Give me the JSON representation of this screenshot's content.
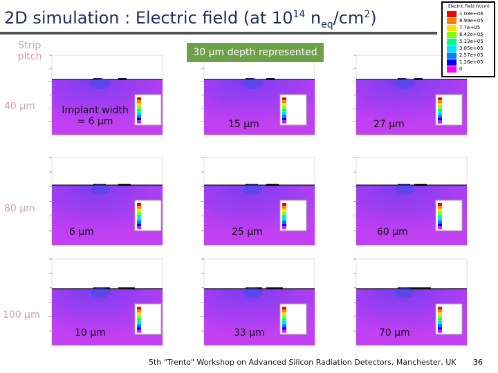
{
  "title": {
    "text": "2D simulation : Electric field (at 10",
    "sup1": "14",
    "mid": " n",
    "sub": "eq",
    "after": "/cm",
    "sup2": "2",
    "end": ")"
  },
  "row_header": "Strip pitch",
  "rows": [
    "40 µm",
    "80 µm",
    "100 µm"
  ],
  "column_header": "30 µm depth represented",
  "cells": [
    [
      "Implant width = 6 µm",
      "15 µm",
      "27 µm"
    ],
    [
      "6 µm",
      "25 µm",
      "60 µm"
    ],
    [
      "10 µm",
      "33 µm",
      "70 µm"
    ]
  ],
  "legend": {
    "title": "Electric Field (V/cm)",
    "levels": [
      "1.03e+06",
      "8.99e+05",
      "7.7e+05",
      "6.42e+05",
      "5.13e+05",
      "3.85e+05",
      "2.57e+05",
      "1.28e+05",
      "0"
    ]
  },
  "footer": {
    "text": "5th \"Trento\" Workshop on Advanced Silicon Radiation Detectors, Manchester, UK",
    "page": "36"
  }
}
